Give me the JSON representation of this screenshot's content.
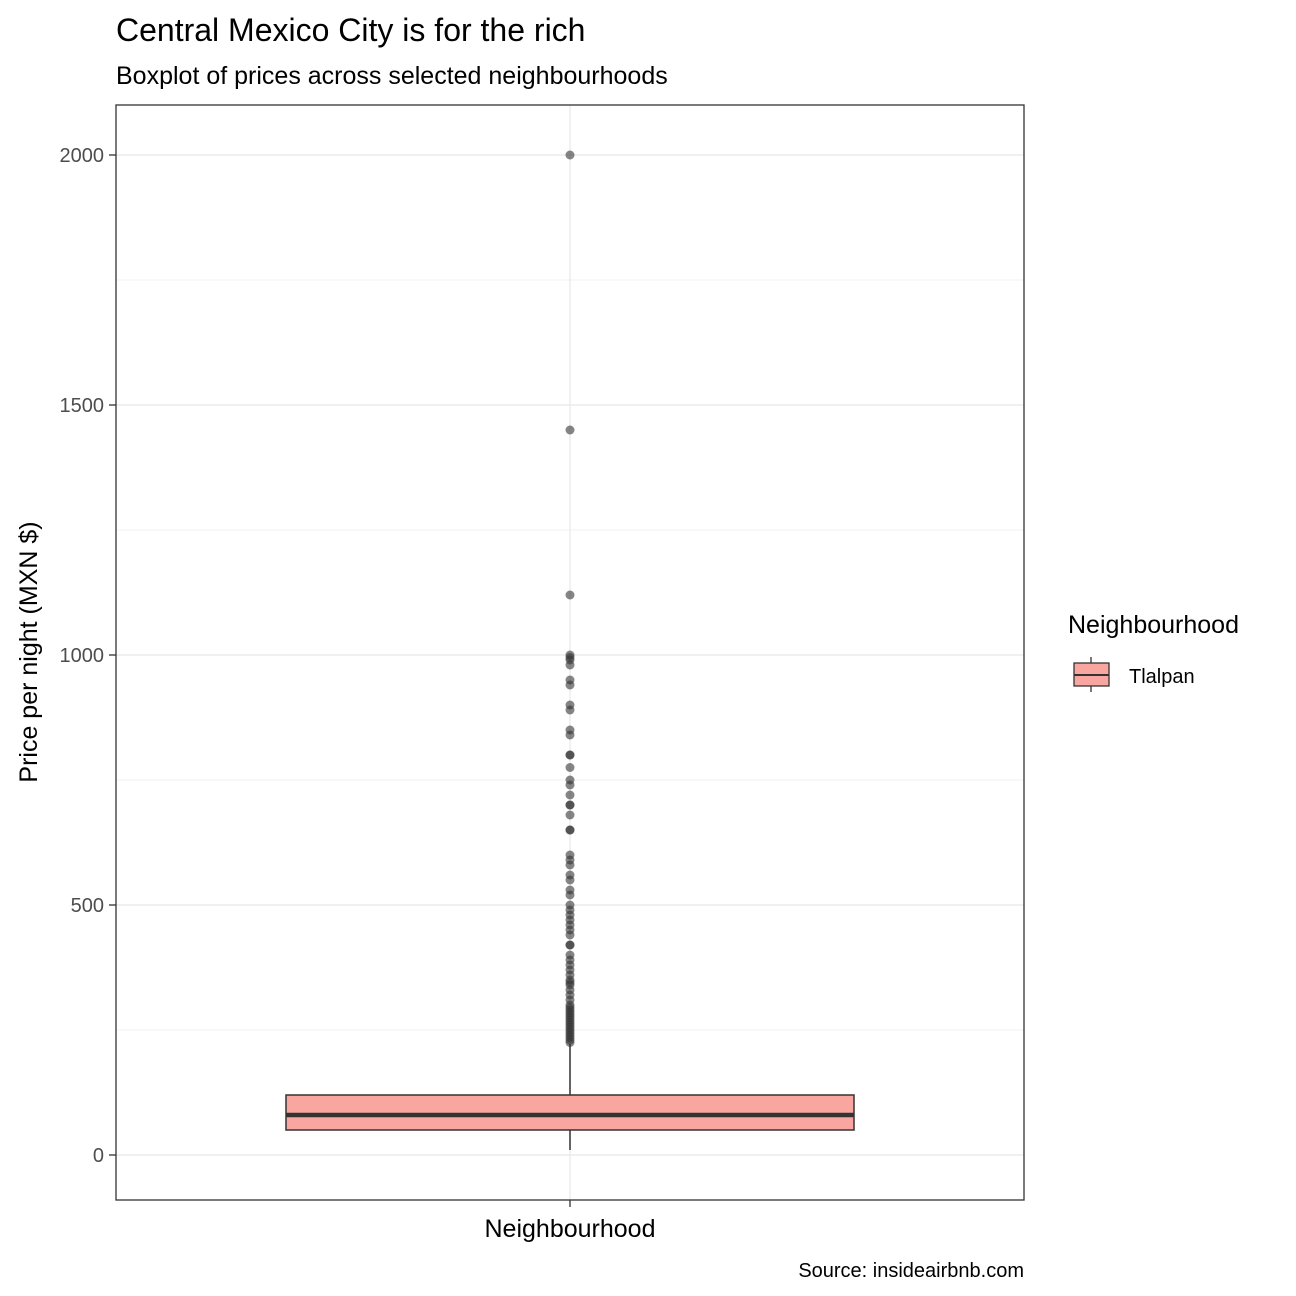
{
  "chart_data": {
    "type": "boxplot",
    "title": "Central Mexico City is for the rich",
    "subtitle": "Boxplot of prices across selected neighbourhoods",
    "xlabel": "Neighbourhood",
    "ylabel": "Price per night (MXN $)",
    "caption": "Source: insideairbnb.com",
    "ylim": [
      -90,
      2100
    ],
    "y_ticks": [
      0,
      500,
      1000,
      1500,
      2000
    ],
    "y_minor_ticks": [
      250,
      750,
      1250,
      1750
    ],
    "grid": true,
    "legend": {
      "title": "Neighbourhood",
      "position": "right",
      "entries": [
        {
          "label": "Tlalpan",
          "fill": "#F8A69F"
        }
      ]
    },
    "series": [
      {
        "name": "Tlalpan",
        "fill": "#F8A69F",
        "whisker_low": 10,
        "q1": 50,
        "median": 80,
        "q3": 120,
        "whisker_high": 222,
        "outliers": [
          2000,
          1450,
          1120,
          1000,
          995,
          990,
          980,
          950,
          940,
          900,
          890,
          850,
          840,
          800,
          800,
          775,
          750,
          740,
          720,
          700,
          700,
          680,
          650,
          650,
          600,
          590,
          580,
          560,
          550,
          530,
          520,
          500,
          490,
          480,
          470,
          460,
          450,
          440,
          420,
          420,
          400,
          390,
          380,
          370,
          360,
          350,
          345,
          340,
          330,
          320,
          310,
          300,
          295,
          290,
          285,
          280,
          275,
          270,
          265,
          260,
          255,
          250,
          245,
          240,
          235,
          230,
          225
        ]
      }
    ]
  },
  "colors": {
    "outlier": "#333333",
    "grid": "#EBEBEB",
    "panel_border": "#333333"
  }
}
